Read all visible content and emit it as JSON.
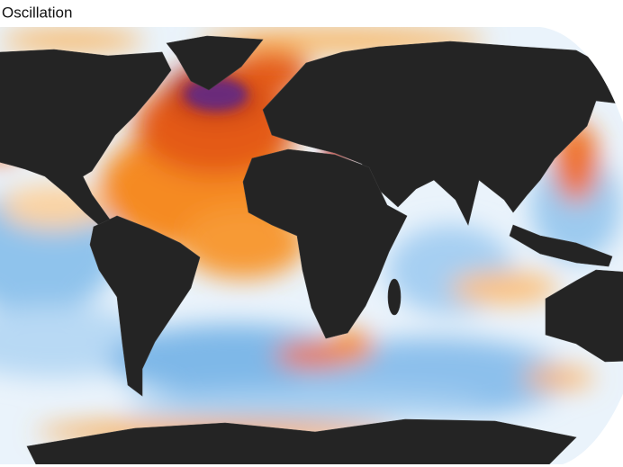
{
  "title": "Oscillation"
}
